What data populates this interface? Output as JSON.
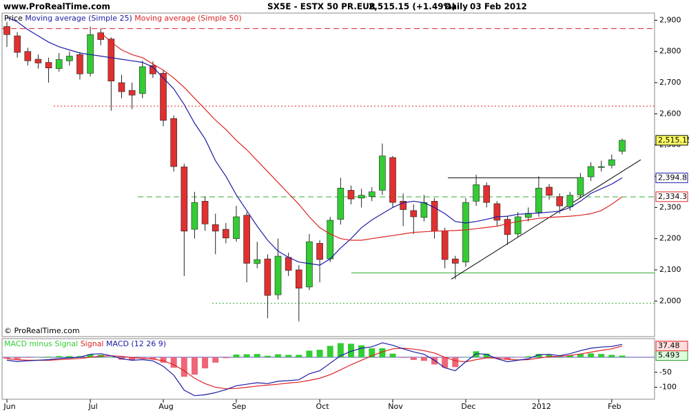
{
  "header": {
    "site": "www.ProRealTime.com",
    "instrument": "SX5E - ESTX 50 PR.EUR",
    "quote": "2,515.15 (+1.49%)",
    "period": "Daily",
    "date": "03 Feb 2012"
  },
  "chart_data": [
    {
      "type": "candlestick",
      "price_label": "Price",
      "copyright": "© ProRealTime.com",
      "categories": [
        "Jun",
        null,
        null,
        null,
        null,
        null,
        null,
        null,
        "Jul",
        null,
        null,
        null,
        null,
        null,
        null,
        "Aug",
        null,
        null,
        null,
        null,
        null,
        null,
        "Sep",
        null,
        null,
        null,
        null,
        null,
        null,
        null,
        "Oct",
        null,
        null,
        null,
        null,
        null,
        null,
        "Nov",
        null,
        null,
        null,
        null,
        null,
        null,
        "Dec",
        null,
        null,
        null,
        null,
        null,
        null,
        "2012",
        null,
        null,
        null,
        null,
        null,
        null,
        "Feb",
        null
      ],
      "open": [
        2880,
        2850,
        2800,
        2775,
        2765,
        2745,
        2770,
        2790,
        2730,
        2860,
        2840,
        2700,
        2675,
        2665,
        2755,
        2730,
        2585,
        2430,
        2230,
        2320,
        2245,
        2230,
        2200,
        2275,
        2120,
        2135,
        2020,
        2140,
        2100,
        2045,
        2185,
        2135,
        2262,
        2355,
        2330,
        2335,
        2355,
        2460,
        2320,
        2290,
        2268,
        2320,
        2225,
        2135,
        2125,
        2320,
        2370,
        2312,
        2262,
        2215,
        2268,
        2285,
        2365,
        2335,
        2302,
        2340,
        2398,
        2428,
        2435,
        2480
      ],
      "high": [
        2895,
        2862,
        2812,
        2790,
        2780,
        2795,
        2800,
        2798,
        2880,
        2872,
        2845,
        2725,
        2700,
        2770,
        2768,
        2740,
        2595,
        2440,
        2350,
        2335,
        2280,
        2250,
        2305,
        2285,
        2190,
        2150,
        2200,
        2155,
        2115,
        2215,
        2195,
        2270,
        2395,
        2370,
        2360,
        2365,
        2505,
        2465,
        2345,
        2310,
        2340,
        2330,
        2235,
        2145,
        2330,
        2405,
        2380,
        2320,
        2272,
        2285,
        2300,
        2400,
        2375,
        2345,
        2350,
        2410,
        2445,
        2450,
        2470,
        2520
      ],
      "low": [
        2815,
        2780,
        2755,
        2745,
        2700,
        2735,
        2755,
        2710,
        2720,
        2820,
        2610,
        2650,
        2615,
        2650,
        2715,
        2560,
        2415,
        2080,
        2200,
        2225,
        2150,
        2185,
        2190,
        2060,
        2105,
        1945,
        2005,
        2080,
        1935,
        2035,
        2060,
        2125,
        2245,
        2310,
        2300,
        2320,
        2340,
        2300,
        2240,
        2215,
        2255,
        2200,
        2105,
        2070,
        2110,
        2305,
        2300,
        2240,
        2180,
        2205,
        2255,
        2270,
        2325,
        2280,
        2290,
        2330,
        2385,
        2415,
        2425,
        2470
      ],
      "close": [
        2854,
        2797,
        2770,
        2763,
        2747,
        2774,
        2785,
        2728,
        2854,
        2838,
        2705,
        2671,
        2660,
        2751,
        2728,
        2579,
        2431,
        2224,
        2316,
        2247,
        2224,
        2202,
        2270,
        2121,
        2133,
        2018,
        2144,
        2098,
        2041,
        2190,
        2133,
        2259,
        2362,
        2327,
        2339,
        2350,
        2465,
        2316,
        2293,
        2270,
        2316,
        2224,
        2133,
        2121,
        2316,
        2373,
        2316,
        2259,
        2213,
        2270,
        2281,
        2362,
        2339,
        2305,
        2339,
        2396,
        2431,
        2431,
        2453,
        2515.15
      ],
      "close_labels": [
        null,
        null,
        null,
        null,
        null,
        null,
        null,
        null,
        null,
        null,
        null,
        null,
        null,
        null,
        null,
        null,
        null,
        null,
        null,
        null,
        null,
        null,
        null,
        null,
        null,
        null,
        null,
        null,
        null,
        null,
        null,
        null,
        null,
        null,
        null,
        null,
        null,
        null,
        null,
        null,
        null,
        null,
        null,
        null,
        null,
        null,
        null,
        null,
        null,
        null,
        null,
        null,
        null,
        null,
        null,
        null,
        null,
        null,
        null,
        "2,515.15"
      ],
      "up_color": "#33cc33",
      "down_color": "#e03030",
      "label_fill": "#ffff66",
      "series": [
        {
          "name": "Moving average (Simple 25)",
          "color": "#1a1aa6",
          "values": [
            2910,
            2895,
            2870,
            2850,
            2830,
            2815,
            2805,
            2795,
            2790,
            2785,
            2780,
            2775,
            2770,
            2765,
            2750,
            2715,
            2680,
            2630,
            2570,
            2520,
            2450,
            2400,
            2340,
            2290,
            2240,
            2195,
            2160,
            2140,
            2125,
            2120,
            2115,
            2135,
            2170,
            2200,
            2235,
            2260,
            2280,
            2300,
            2315,
            2320,
            2315,
            2300,
            2280,
            2255,
            2250,
            2255,
            2262,
            2270,
            2272,
            2278,
            2280,
            2282,
            2285,
            2288,
            2300,
            2320,
            2345,
            2360,
            2375,
            2394.8
          ],
          "value_labels": [
            null,
            null,
            null,
            null,
            null,
            null,
            null,
            null,
            null,
            null,
            null,
            null,
            null,
            null,
            null,
            null,
            null,
            null,
            null,
            null,
            null,
            null,
            null,
            null,
            null,
            null,
            null,
            null,
            null,
            null,
            null,
            null,
            null,
            null,
            null,
            null,
            null,
            null,
            null,
            null,
            null,
            null,
            null,
            null,
            null,
            null,
            null,
            null,
            null,
            null,
            null,
            null,
            null,
            null,
            null,
            null,
            null,
            null,
            null,
            "2,394.8"
          ]
        },
        {
          "name": "Moving average (Simple 50)",
          "color": "#dd2222",
          "values": [
            null,
            null,
            null,
            null,
            null,
            null,
            null,
            null,
            null,
            2860,
            2830,
            2805,
            2790,
            2780,
            2760,
            2740,
            2715,
            2685,
            2650,
            2615,
            2580,
            2550,
            2515,
            2485,
            2450,
            2415,
            2380,
            2345,
            2310,
            2270,
            2235,
            2215,
            2200,
            2195,
            2195,
            2200,
            2205,
            2210,
            2215,
            2220,
            2222,
            2224,
            2225,
            2226,
            2228,
            2232,
            2236,
            2240,
            2248,
            2255,
            2260,
            2265,
            2268,
            2270,
            2272,
            2275,
            2280,
            2290,
            2310,
            2334.3
          ],
          "value_labels": [
            null,
            null,
            null,
            null,
            null,
            null,
            null,
            null,
            null,
            null,
            null,
            null,
            null,
            null,
            null,
            null,
            null,
            null,
            null,
            null,
            null,
            null,
            null,
            null,
            null,
            null,
            null,
            null,
            null,
            null,
            null,
            null,
            null,
            null,
            null,
            null,
            null,
            null,
            null,
            null,
            null,
            null,
            null,
            null,
            null,
            null,
            null,
            null,
            null,
            null,
            null,
            null,
            null,
            null,
            null,
            null,
            null,
            null,
            null,
            "2,334.3"
          ]
        }
      ],
      "levels": [
        {
          "value": 2873,
          "color": "#dd2222",
          "style": "dashed"
        },
        {
          "value": 2625,
          "color": "#dd2222",
          "style": "dotted"
        },
        {
          "value": 2334,
          "color": "#33aa33",
          "style": "dashed"
        },
        {
          "value": 2090,
          "color": "#33aa33",
          "style": "solid"
        },
        {
          "value": 1993,
          "color": "#33aa33",
          "style": "dotted"
        }
      ],
      "trendlines": [
        {
          "values": [
            2395,
            2395
          ],
          "color": "#000000"
        },
        {
          "values": [
            2070,
            2453
          ],
          "color": "#000000"
        }
      ],
      "ylim": [
        1886,
        2923
      ],
      "yticks": [
        {
          "value": 2000,
          "label": "2,000"
        },
        {
          "value": 2100,
          "label": "2,100"
        },
        {
          "value": 2200,
          "label": "2,200"
        },
        {
          "value": 2300,
          "label": "2,300"
        },
        {
          "value": 2400,
          "label": "2,400"
        },
        {
          "value": 2500,
          "label": "2,500"
        },
        {
          "value": 2600,
          "label": "2,600"
        },
        {
          "value": 2700,
          "label": "2,700"
        },
        {
          "value": 2800,
          "label": "2,800"
        },
        {
          "value": 2900,
          "label": "2,900"
        }
      ]
    },
    {
      "type": "macd",
      "series": [
        {
          "name": "MACD minus Signal",
          "kind": "histogram",
          "color": "#33cc33",
          "negative_color": "#ee6677",
          "values": [
            -5,
            -6,
            -2,
            0,
            2,
            4,
            4,
            4,
            10,
            8,
            0,
            -8,
            -9,
            -4,
            -6,
            -18,
            -35,
            -65,
            -58,
            -37,
            -18,
            -3,
            9,
            10,
            11,
            5,
            10,
            8,
            8,
            22,
            25,
            38,
            47,
            45,
            40,
            30,
            30,
            12,
            -2,
            -9,
            -12,
            -24,
            -35,
            -33,
            0,
            20,
            12,
            -2,
            -8,
            -1,
            3,
            11,
            8,
            2,
            6,
            11,
            13,
            11,
            8,
            5.493
          ],
          "value_labels": [
            null,
            null,
            null,
            null,
            null,
            null,
            null,
            null,
            null,
            null,
            null,
            null,
            null,
            null,
            null,
            null,
            null,
            null,
            null,
            null,
            null,
            null,
            null,
            null,
            null,
            null,
            null,
            null,
            null,
            null,
            null,
            null,
            null,
            null,
            null,
            null,
            null,
            null,
            null,
            null,
            null,
            null,
            null,
            null,
            null,
            null,
            null,
            null,
            null,
            null,
            null,
            null,
            null,
            null,
            null,
            null,
            null,
            null,
            null,
            "5.493"
          ]
        },
        {
          "name": "Signal",
          "kind": "line",
          "color": "#dd2222",
          "values": [
            -5,
            -8,
            -10,
            -10,
            -10,
            -8,
            -6,
            -4,
            0,
            4,
            5,
            3,
            -1,
            -4,
            -6,
            -12,
            -25,
            -45,
            -70,
            -88,
            -100,
            -105,
            -104,
            -100,
            -96,
            -93,
            -90,
            -86,
            -83,
            -77,
            -70,
            -58,
            -42,
            -25,
            -10,
            5,
            18,
            28,
            30,
            27,
            22,
            14,
            0,
            -12,
            -15,
            -8,
            -2,
            -3,
            -7,
            -9,
            -8,
            -3,
            2,
            3,
            6,
            11,
            17,
            23,
            28,
            37.48
          ],
          "value_labels": [
            null,
            null,
            null,
            null,
            null,
            null,
            null,
            null,
            null,
            null,
            null,
            null,
            null,
            null,
            null,
            null,
            null,
            null,
            null,
            null,
            null,
            null,
            null,
            null,
            null,
            null,
            null,
            null,
            null,
            null,
            null,
            null,
            null,
            null,
            null,
            null,
            null,
            null,
            null,
            null,
            null,
            null,
            null,
            null,
            null,
            null,
            null,
            null,
            null,
            null,
            null,
            null,
            null,
            null,
            null,
            null,
            null,
            null,
            null,
            "37.48"
          ]
        },
        {
          "name": "MACD (12 26 9)",
          "kind": "line",
          "color": "#1a1aa6",
          "values": [
            -10,
            -14,
            -12,
            -10,
            -8,
            -4,
            -2,
            0,
            10,
            12,
            5,
            -5,
            -10,
            -8,
            -12,
            -30,
            -60,
            -110,
            -128,
            -125,
            -118,
            -108,
            -95,
            -90,
            -85,
            -88,
            -80,
            -78,
            -75,
            -55,
            -45,
            -20,
            5,
            20,
            30,
            35,
            48,
            40,
            28,
            18,
            10,
            -10,
            -35,
            -45,
            -15,
            12,
            10,
            -5,
            -15,
            -10,
            -5,
            8,
            10,
            5,
            12,
            22,
            30,
            34,
            36,
            42.97
          ]
        }
      ],
      "ylim": [
        -140,
        62
      ],
      "yticks": [
        -50,
        -100
      ]
    }
  ]
}
